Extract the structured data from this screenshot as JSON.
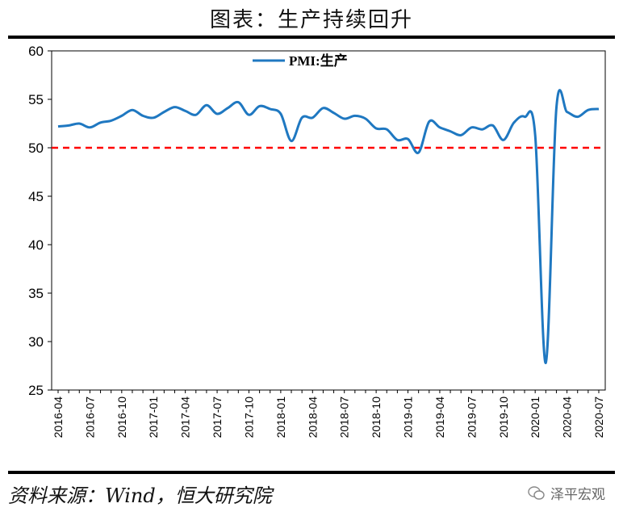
{
  "header": {
    "title": "图表：生产持续回升"
  },
  "footer": {
    "source": "资料来源：Wind，恒大研究院",
    "watermark": "泽平宏观",
    "watermark_icon": "wechat-icon"
  },
  "chart_data": {
    "type": "line",
    "title": "图表：生产持续回升",
    "xlabel": "",
    "ylabel": "",
    "ylim": [
      25,
      60
    ],
    "yticks": [
      25,
      30,
      35,
      40,
      45,
      50,
      55,
      60
    ],
    "xticks": [
      "2016-04",
      "2016-07",
      "2016-10",
      "2017-01",
      "2017-04",
      "2017-07",
      "2017-10",
      "2018-01",
      "2018-04",
      "2018-07",
      "2018-10",
      "2019-01",
      "2019-04",
      "2019-07",
      "2019-10",
      "2020-01",
      "2020-04",
      "2020-07"
    ],
    "x": [
      "2016-04",
      "2016-05",
      "2016-06",
      "2016-07",
      "2016-08",
      "2016-09",
      "2016-10",
      "2016-11",
      "2016-12",
      "2017-01",
      "2017-02",
      "2017-03",
      "2017-04",
      "2017-05",
      "2017-06",
      "2017-07",
      "2017-08",
      "2017-09",
      "2017-10",
      "2017-11",
      "2017-12",
      "2018-01",
      "2018-02",
      "2018-03",
      "2018-04",
      "2018-05",
      "2018-06",
      "2018-07",
      "2018-08",
      "2018-09",
      "2018-10",
      "2018-11",
      "2018-12",
      "2019-01",
      "2019-02",
      "2019-03",
      "2019-04",
      "2019-05",
      "2019-06",
      "2019-07",
      "2019-08",
      "2019-09",
      "2019-10",
      "2019-11",
      "2019-12",
      "2020-01",
      "2020-02",
      "2020-03",
      "2020-04",
      "2020-05",
      "2020-06",
      "2020-07"
    ],
    "series": [
      {
        "name": "PMI:生产",
        "color": "#1f78c1",
        "values": [
          52.2,
          52.3,
          52.5,
          52.1,
          52.6,
          52.8,
          53.3,
          53.9,
          53.3,
          53.1,
          53.7,
          54.2,
          53.8,
          53.4,
          54.4,
          53.5,
          54.1,
          54.7,
          53.4,
          54.3,
          54.0,
          53.5,
          50.7,
          53.1,
          53.1,
          54.1,
          53.6,
          53.0,
          53.3,
          53.0,
          52.0,
          51.9,
          50.8,
          50.9,
          49.5,
          52.7,
          52.1,
          51.7,
          51.3,
          52.1,
          51.9,
          52.3,
          50.8,
          52.6,
          53.2,
          51.3,
          27.8,
          54.1,
          53.7,
          53.2,
          53.9,
          54.0
        ]
      }
    ],
    "reference_line": {
      "value": 50,
      "color": "#ff0000",
      "style": "dashed"
    },
    "legend": {
      "position": "top-center"
    },
    "grid": false
  }
}
